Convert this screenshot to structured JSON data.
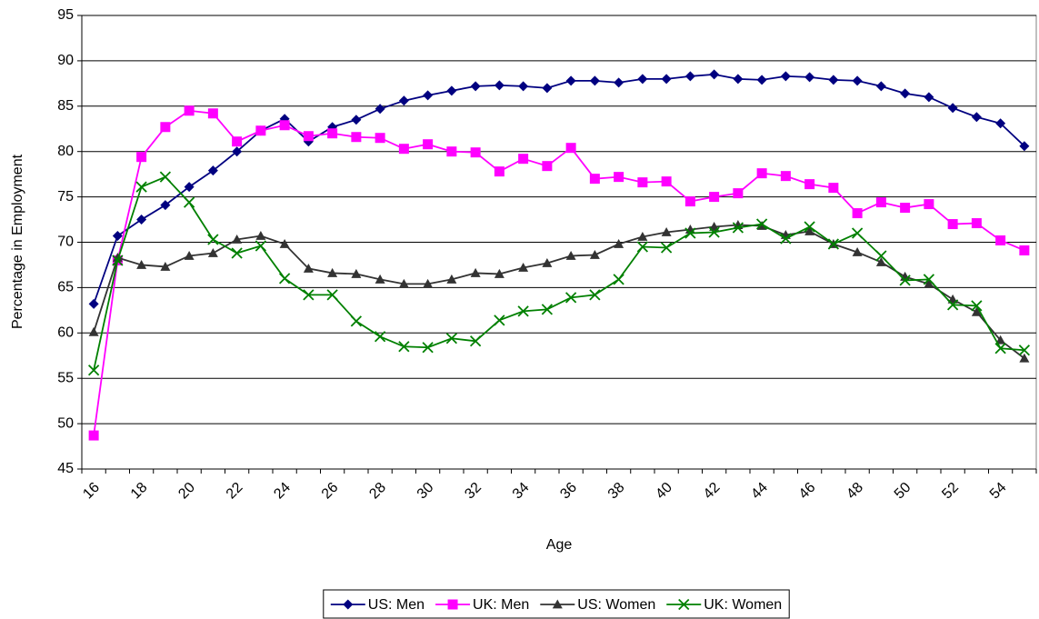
{
  "chart_data": {
    "type": "line",
    "x_label": "Age",
    "y_label": "Percentage in Employment",
    "categories": [
      "16",
      null,
      "18",
      null,
      "20",
      null,
      "22",
      null,
      "24",
      null,
      "26",
      null,
      "28",
      null,
      "30",
      null,
      "32",
      null,
      "34",
      null,
      "36",
      null,
      "38",
      null,
      "40",
      null,
      "42",
      null,
      "44",
      null,
      "46",
      null,
      "48",
      null,
      "50",
      null,
      "52",
      null,
      "54",
      null
    ],
    "ylim": [
      45,
      95
    ],
    "yticks": [
      45,
      50,
      55,
      60,
      65,
      70,
      75,
      80,
      85,
      90,
      95
    ],
    "grid": true,
    "series": [
      {
        "name": "US: Men",
        "color": "#000080",
        "marker": "diamond",
        "values": [
          63.2,
          70.7,
          72.5,
          74.1,
          76.1,
          77.9,
          80.0,
          82.3,
          83.6,
          81.1,
          82.7,
          83.5,
          84.7,
          85.6,
          86.2,
          86.7,
          87.2,
          87.3,
          87.2,
          87.0,
          87.8,
          87.8,
          87.6,
          88.0,
          88.0,
          88.3,
          88.5,
          88.0,
          87.9,
          88.3,
          88.2,
          87.9,
          87.8,
          87.2,
          86.4,
          86.0,
          84.8,
          83.8,
          83.1,
          80.6
        ]
      },
      {
        "name": "UK: Men",
        "color": "#ff00ff",
        "marker": "square",
        "values": [
          48.7,
          68.0,
          79.4,
          82.7,
          84.5,
          84.2,
          81.1,
          82.3,
          82.9,
          81.7,
          82.0,
          81.6,
          81.5,
          80.3,
          80.8,
          80.0,
          79.9,
          77.8,
          79.2,
          78.4,
          80.4,
          77.0,
          77.2,
          76.6,
          76.7,
          74.5,
          75.0,
          75.4,
          77.6,
          77.3,
          76.4,
          76.0,
          73.2,
          74.4,
          73.8,
          74.2,
          72.0,
          72.1,
          70.2,
          69.1
        ]
      },
      {
        "name": "US: Women",
        "color": "#333333",
        "marker": "triangle",
        "values": [
          60.1,
          68.3,
          67.5,
          67.3,
          68.5,
          68.8,
          70.3,
          70.7,
          69.8,
          67.1,
          66.6,
          66.5,
          65.9,
          65.4,
          65.4,
          65.9,
          66.6,
          66.5,
          67.2,
          67.7,
          68.5,
          68.6,
          69.8,
          70.6,
          71.1,
          71.4,
          71.7,
          71.9,
          71.8,
          70.8,
          71.2,
          69.8,
          68.9,
          67.8,
          66.2,
          65.4,
          63.7,
          62.3,
          59.2,
          57.2
        ]
      },
      {
        "name": "UK: Women",
        "color": "#008000",
        "marker": "x",
        "values": [
          55.9,
          68.0,
          76.1,
          77.2,
          74.4,
          70.3,
          68.8,
          69.6,
          66.0,
          64.2,
          64.2,
          61.3,
          59.6,
          58.5,
          58.4,
          59.4,
          59.1,
          61.4,
          62.4,
          62.6,
          63.9,
          64.2,
          65.9,
          69.5,
          69.4,
          71.0,
          71.1,
          71.6,
          72.0,
          70.4,
          71.7,
          69.8,
          71.0,
          68.5,
          65.8,
          65.9,
          63.1,
          63.0,
          58.3,
          58.1
        ]
      }
    ]
  }
}
